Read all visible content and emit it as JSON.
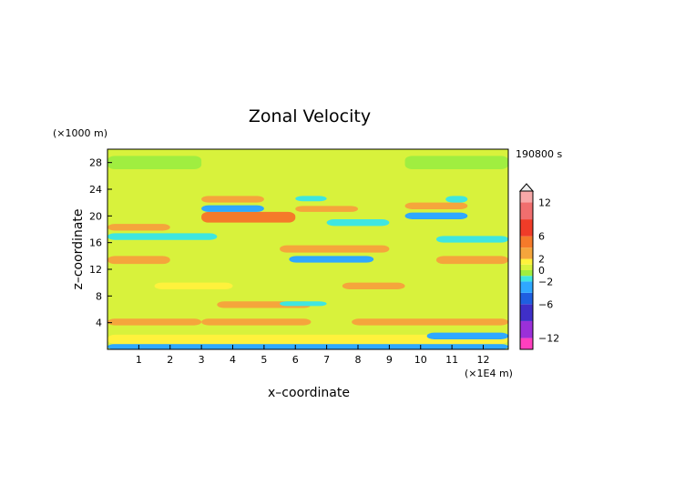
{
  "chart_data": {
    "type": "heatmap",
    "title": "Zonal Velocity",
    "xlabel": "x–coordinate",
    "ylabel": "z–coordinate",
    "x_unit": "(×1E4 m)",
    "y_unit": "(×1000 m)",
    "time_label": "190800 s",
    "xlim": [
      0,
      12.8
    ],
    "ylim": [
      0,
      30
    ],
    "x_ticks": [
      "1",
      "2",
      "3",
      "4",
      "5",
      "6",
      "7",
      "8",
      "9",
      "10",
      "11",
      "12"
    ],
    "y_ticks": [
      "4",
      "8",
      "12",
      "16",
      "20",
      "24",
      "28"
    ],
    "colorbar": {
      "ticks": [
        "12",
        "6",
        "2",
        "0",
        "−2",
        "−6",
        "−12"
      ],
      "tick_values": [
        12,
        6,
        2,
        0,
        -2,
        -6,
        -12
      ],
      "range": [
        -14,
        14
      ],
      "colors": [
        {
          "from": -14,
          "to": -12,
          "color": "#ff3fbf"
        },
        {
          "from": -12,
          "to": -9,
          "color": "#9b30d9"
        },
        {
          "from": -9,
          "to": -6,
          "color": "#3f2fc8"
        },
        {
          "from": -6,
          "to": -4,
          "color": "#1f5fe0"
        },
        {
          "from": -4,
          "to": -2,
          "color": "#2fa8ff"
        },
        {
          "from": -2,
          "to": -1,
          "color": "#3fe6e0"
        },
        {
          "from": -1,
          "to": 0,
          "color": "#a0ee40"
        },
        {
          "from": 0,
          "to": 1,
          "color": "#d8f23c"
        },
        {
          "from": 1,
          "to": 2,
          "color": "#fff23c"
        },
        {
          "from": 2,
          "to": 4,
          "color": "#f5a53c"
        },
        {
          "from": 4,
          "to": 6,
          "color": "#f57a2a"
        },
        {
          "from": 6,
          "to": 9,
          "color": "#f03c28"
        },
        {
          "from": 9,
          "to": 12,
          "color": "#f06e6e"
        },
        {
          "from": 12,
          "to": 14,
          "color": "#f7a8a8"
        }
      ]
    },
    "field": {
      "background": 0.5,
      "features": [
        {
          "x0": 0.0,
          "x1": 12.8,
          "z0": 0.0,
          "z1": 0.8,
          "v": -2.5
        },
        {
          "x0": 0.0,
          "x1": 12.8,
          "z0": 0.8,
          "z1": 2.2,
          "v": 1.5
        },
        {
          "x0": 0.0,
          "x1": 3.0,
          "z0": 3.6,
          "z1": 4.6,
          "v": 3.0
        },
        {
          "x0": 3.0,
          "x1": 6.5,
          "z0": 3.6,
          "z1": 4.6,
          "v": 2.5
        },
        {
          "x0": 7.8,
          "x1": 12.8,
          "z0": 3.6,
          "z1": 4.6,
          "v": 3.0
        },
        {
          "x0": 10.2,
          "x1": 12.8,
          "z0": 1.5,
          "z1": 2.5,
          "v": -2.5
        },
        {
          "x0": 3.5,
          "x1": 6.5,
          "z0": 6.2,
          "z1": 7.2,
          "v": 3.0
        },
        {
          "x0": 5.5,
          "x1": 7.0,
          "z0": 6.5,
          "z1": 7.2,
          "v": -2.0
        },
        {
          "x0": 1.5,
          "x1": 4.0,
          "z0": 9.0,
          "z1": 10.0,
          "v": 1.5
        },
        {
          "x0": 7.5,
          "x1": 9.5,
          "z0": 9.0,
          "z1": 10.0,
          "v": 2.5
        },
        {
          "x0": 0.0,
          "x1": 2.0,
          "z0": 12.8,
          "z1": 14.0,
          "v": 3.0
        },
        {
          "x0": 5.8,
          "x1": 8.5,
          "z0": 13.0,
          "z1": 14.0,
          "v": -3.0
        },
        {
          "x0": 10.5,
          "x1": 12.8,
          "z0": 12.8,
          "z1": 14.0,
          "v": 3.0
        },
        {
          "x0": 5.5,
          "x1": 9.0,
          "z0": 14.5,
          "z1": 15.6,
          "v": 3.0
        },
        {
          "x0": 0.0,
          "x1": 3.5,
          "z0": 16.4,
          "z1": 17.4,
          "v": -1.5
        },
        {
          "x0": 0.0,
          "x1": 2.0,
          "z0": 17.8,
          "z1": 18.8,
          "v": 3.0
        },
        {
          "x0": 3.0,
          "x1": 6.0,
          "z0": 19.0,
          "z1": 20.6,
          "v": 4.0
        },
        {
          "x0": 3.0,
          "x1": 5.0,
          "z0": 20.6,
          "z1": 21.6,
          "v": -3.0
        },
        {
          "x0": 3.0,
          "x1": 5.0,
          "z0": 22.0,
          "z1": 23.0,
          "v": 2.5
        },
        {
          "x0": 6.0,
          "x1": 8.0,
          "z0": 20.6,
          "z1": 21.5,
          "v": 2.5
        },
        {
          "x0": 7.0,
          "x1": 9.0,
          "z0": 18.5,
          "z1": 19.5,
          "v": -2.0
        },
        {
          "x0": 9.5,
          "x1": 11.5,
          "z0": 19.5,
          "z1": 20.5,
          "v": -3.0
        },
        {
          "x0": 9.5,
          "x1": 11.5,
          "z0": 21.0,
          "z1": 22.0,
          "v": 3.0
        },
        {
          "x0": 10.5,
          "x1": 12.8,
          "z0": 16.0,
          "z1": 17.0,
          "v": -2.0
        },
        {
          "x0": 6.0,
          "x1": 7.0,
          "z0": 22.2,
          "z1": 23.0,
          "v": -1.5
        },
        {
          "x0": 10.8,
          "x1": 11.5,
          "z0": 22.0,
          "z1": 23.0,
          "v": -1.5
        },
        {
          "x0": 0.0,
          "x1": 12.8,
          "z0": 24.5,
          "z1": 26.5,
          "v": 0.8
        },
        {
          "x0": 0.0,
          "x1": 3.0,
          "z0": 27.0,
          "z1": 29.0,
          "v": -0.5
        },
        {
          "x0": 9.5,
          "x1": 12.8,
          "z0": 27.0,
          "z1": 29.0,
          "v": -0.5
        }
      ]
    }
  }
}
